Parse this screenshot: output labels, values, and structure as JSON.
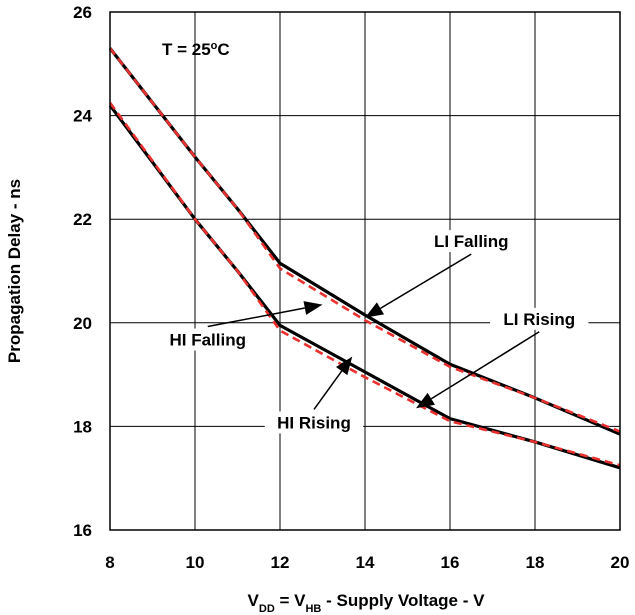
{
  "chart_data": {
    "type": "line",
    "title": "",
    "xlabel": {
      "main": "V",
      "sub1": "DD",
      "mid": " = V",
      "sub2": "HB",
      "tail": " - Supply Voltage - V"
    },
    "ylabel": "Propagation Delay - ns",
    "xlim": [
      8,
      20
    ],
    "ylim": [
      16,
      26
    ],
    "xticks": [
      8,
      10,
      12,
      14,
      16,
      18,
      20
    ],
    "yticks": [
      16,
      18,
      20,
      22,
      24,
      26
    ],
    "grid": true,
    "condition": {
      "prefix": "T = 25",
      "degree": "o",
      "suffix": "C"
    },
    "series": [
      {
        "name": "LI Falling",
        "color": "#000000",
        "x": [
          8,
          10,
          11,
          12,
          14,
          16,
          18,
          20
        ],
        "y": [
          25.3,
          23.2,
          22.2,
          21.15,
          20.15,
          19.2,
          18.55,
          17.85
        ]
      },
      {
        "name": "LI Rising",
        "color": "#000000",
        "x": [
          8,
          10,
          11,
          12,
          14,
          16,
          18,
          20
        ],
        "y": [
          24.2,
          22.0,
          21.0,
          19.95,
          19.05,
          18.15,
          17.7,
          17.2
        ]
      }
    ],
    "companion_series": [
      {
        "of": "LI Falling",
        "color": "#e8312f",
        "x": [
          8,
          10,
          11,
          12,
          14,
          16,
          18,
          20
        ],
        "y": [
          25.3,
          23.2,
          22.2,
          21.05,
          20.05,
          19.15,
          18.55,
          17.9
        ]
      },
      {
        "of": "LI Rising",
        "color": "#e8312f",
        "x": [
          8,
          10,
          11,
          12,
          14,
          16,
          18,
          20
        ],
        "y": [
          24.25,
          22.0,
          21.0,
          19.85,
          18.95,
          18.1,
          17.7,
          17.25
        ]
      }
    ],
    "annotations": [
      {
        "text": "LI Falling",
        "tx": 16.5,
        "ty": 21.5,
        "ax": 14.0,
        "ay": 20.1
      },
      {
        "text": "LI Rising",
        "tx": 18.1,
        "ty": 20.0,
        "ax": 15.2,
        "ay": 18.35
      },
      {
        "text": "HI Falling",
        "tx": 10.3,
        "ty": 19.6,
        "ax": 13.0,
        "ay": 20.35
      },
      {
        "text": "HI Rising",
        "tx": 12.8,
        "ty": 18.0,
        "ax": 13.7,
        "ay": 19.35
      }
    ]
  }
}
